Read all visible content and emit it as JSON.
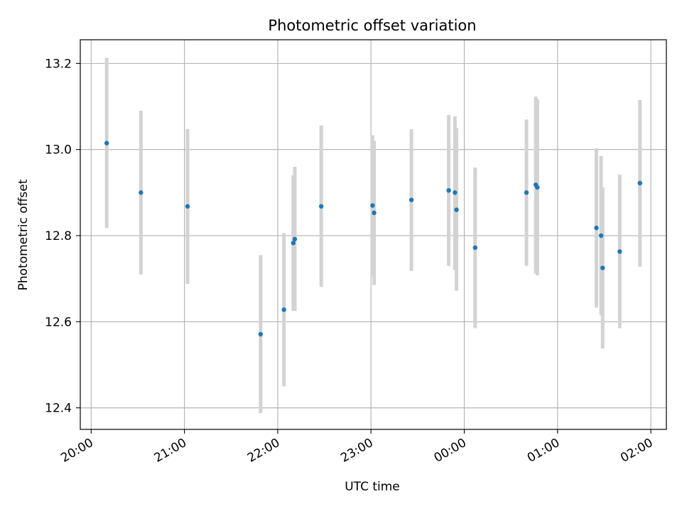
{
  "chart_data": {
    "type": "scatter",
    "title": "Photometric offset variation",
    "xlabel": "UTC time",
    "ylabel": "Photometric offset",
    "xlim": [
      "19:53",
      "02:10"
    ],
    "ylim": [
      12.35,
      13.255
    ],
    "x_ticks": [
      "20:00",
      "21:00",
      "22:00",
      "23:00",
      "00:00",
      "01:00",
      "02:00"
    ],
    "y_ticks": [
      "12.4",
      "12.6",
      "12.8",
      "13.0",
      "13.2"
    ],
    "grid": true,
    "marker_color": "#1f77b4",
    "errorbar_color": "#d3d3d3",
    "series": [
      {
        "points": [
          {
            "x": "20:10",
            "y": 13.015,
            "low": 12.818,
            "high": 13.213
          },
          {
            "x": "20:32",
            "y": 12.9,
            "low": 12.71,
            "high": 13.09
          },
          {
            "x": "21:02",
            "y": 12.868,
            "low": 12.688,
            "high": 13.048
          },
          {
            "x": "21:49",
            "y": 12.571,
            "low": 12.388,
            "high": 12.755
          },
          {
            "x": "22:04",
            "y": 12.628,
            "low": 12.45,
            "high": 12.806
          },
          {
            "x": "22:10",
            "y": 12.783,
            "low": 12.625,
            "high": 12.94
          },
          {
            "x": "22:11",
            "y": 12.792,
            "low": 12.625,
            "high": 12.96
          },
          {
            "x": "22:28",
            "y": 12.868,
            "low": 12.681,
            "high": 13.056
          },
          {
            "x": "23:01",
            "y": 12.87,
            "low": 12.705,
            "high": 13.033
          },
          {
            "x": "23:02",
            "y": 12.853,
            "low": 12.685,
            "high": 13.02
          },
          {
            "x": "23:26",
            "y": 12.883,
            "low": 12.718,
            "high": 13.047
          },
          {
            "x": "23:50",
            "y": 12.905,
            "low": 12.73,
            "high": 13.08
          },
          {
            "x": "23:54",
            "y": 12.9,
            "low": 12.72,
            "high": 13.077
          },
          {
            "x": "23:55",
            "y": 12.86,
            "low": 12.672,
            "high": 13.05
          },
          {
            "x": "00:07",
            "y": 12.772,
            "low": 12.585,
            "high": 12.958
          },
          {
            "x": "00:40",
            "y": 12.9,
            "low": 12.73,
            "high": 13.07
          },
          {
            "x": "00:46",
            "y": 12.918,
            "low": 12.712,
            "high": 13.123
          },
          {
            "x": "00:47",
            "y": 12.912,
            "low": 12.708,
            "high": 13.117
          },
          {
            "x": "01:25",
            "y": 12.818,
            "low": 12.633,
            "high": 13.003
          },
          {
            "x": "01:28",
            "y": 12.8,
            "low": 12.615,
            "high": 12.985
          },
          {
            "x": "01:29",
            "y": 12.725,
            "low": 12.538,
            "high": 12.912
          },
          {
            "x": "01:40",
            "y": 12.763,
            "low": 12.585,
            "high": 12.942
          },
          {
            "x": "01:53",
            "y": 12.922,
            "low": 12.728,
            "high": 13.115
          }
        ]
      }
    ]
  }
}
